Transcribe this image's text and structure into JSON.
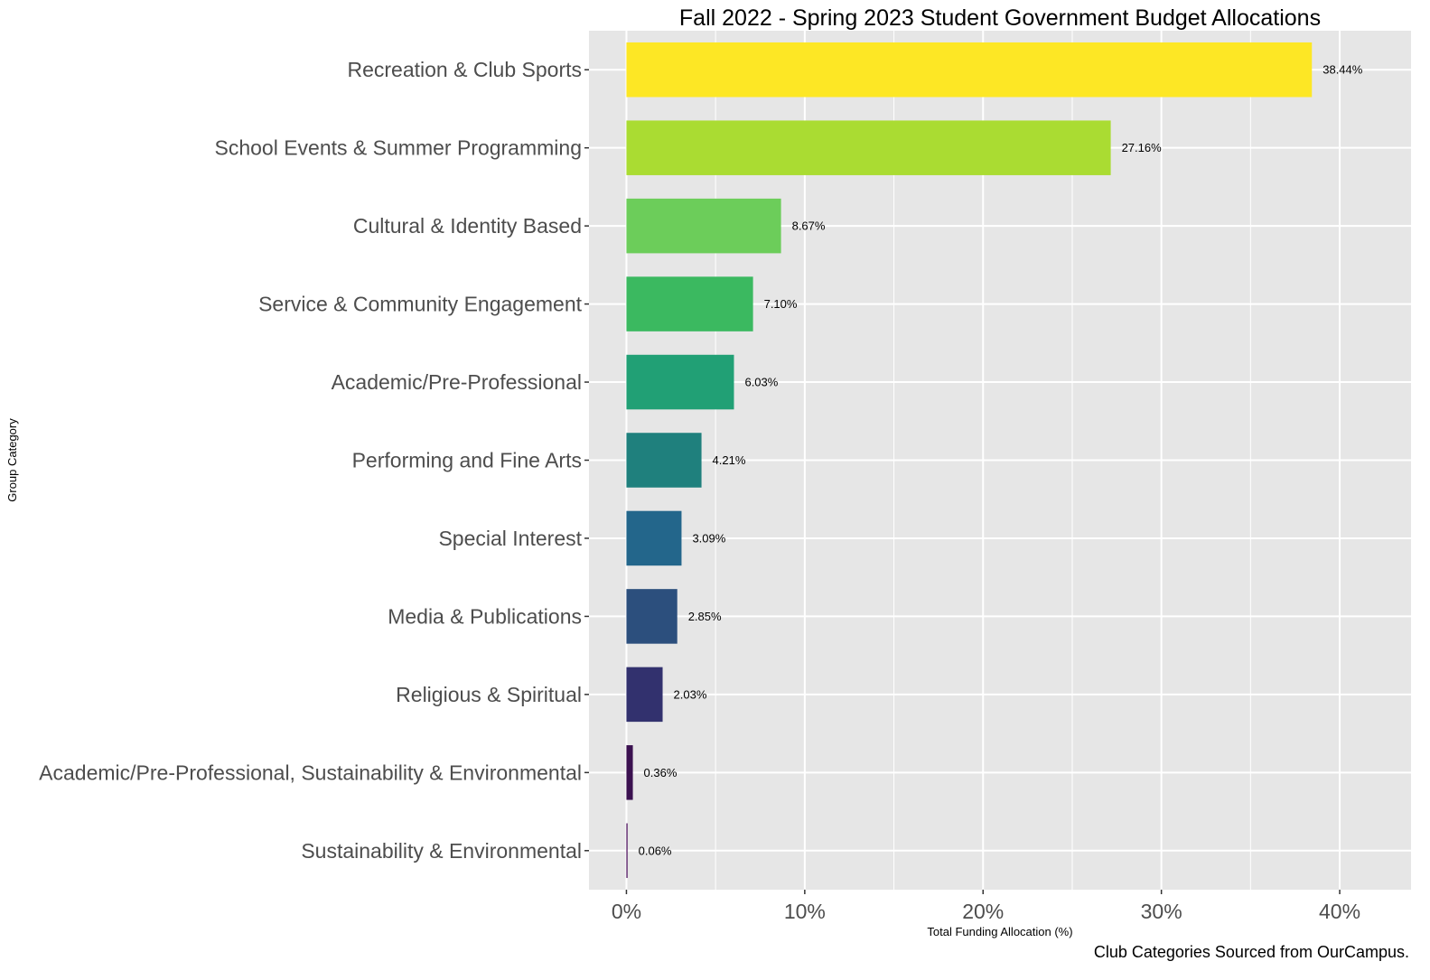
{
  "chart_data": {
    "type": "bar",
    "orientation": "horizontal",
    "title": "Fall 2022 - Spring 2023 Student Government Budget Allocations",
    "xlabel": "Total Funding Allocation (%)",
    "ylabel": "Group Category",
    "caption": "Club Categories Sourced from OurCampus.",
    "xlim": [
      -2.1,
      44
    ],
    "xticks": [
      0,
      10,
      20,
      30,
      40
    ],
    "xtick_labels": [
      "0%",
      "10%",
      "20%",
      "30%",
      "40%"
    ],
    "grid": true,
    "legend": "none",
    "categories": [
      "Recreation & Club Sports",
      "School Events & Summer Programming",
      "Cultural & Identity Based",
      "Service & Community Engagement",
      "Academic/Pre-Professional",
      "Performing and Fine Arts",
      "Special Interest",
      "Media & Publications",
      "Religious & Spiritual",
      "Academic/Pre-Professional, Sustainability & Environmental",
      "Sustainability & Environmental"
    ],
    "values": [
      38.44,
      27.16,
      8.67,
      7.1,
      6.03,
      4.21,
      3.09,
      2.85,
      2.03,
      0.36,
      0.06
    ],
    "data_labels": [
      "38.44%",
      "27.16%",
      "8.67%",
      "7.10%",
      "6.03%",
      "4.21%",
      "3.09%",
      "2.85%",
      "2.03%",
      "0.36%",
      "0.06%"
    ],
    "colors": [
      "#FDE725",
      "#AADC32",
      "#6CCD5A",
      "#3BB960",
      "#21A075",
      "#1F807D",
      "#23668B",
      "#2C4F7D",
      "#32316E",
      "#3B1150",
      "#440154"
    ],
    "panel_background": "#E6E6E6",
    "grid_color": "#FFFFFF"
  }
}
